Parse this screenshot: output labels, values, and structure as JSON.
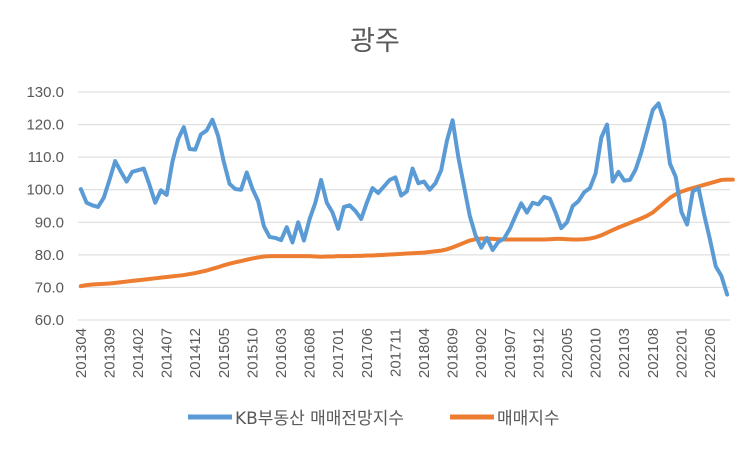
{
  "chart_data": {
    "type": "line",
    "title": "광주",
    "xlabel": "",
    "ylabel": "",
    "ylim": [
      60,
      130
    ],
    "yticks": [
      "130.0",
      "120.0",
      "110.0",
      "100.0",
      "90.0",
      "80.0",
      "70.0",
      "60.0"
    ],
    "x_tick_labels": [
      "201304",
      "201309",
      "201402",
      "201407",
      "201412",
      "201505",
      "201510",
      "201603",
      "201608",
      "201701",
      "201706",
      "201711",
      "201804",
      "201809",
      "201902",
      "201907",
      "201912",
      "202005",
      "202010",
      "202103",
      "202108",
      "202201",
      "202206"
    ],
    "grid": true,
    "legend_position": "bottom",
    "colors": {
      "series_1": "#5b9bd5",
      "series_2": "#ed7d31",
      "grid": "#d9d9d9"
    },
    "series": [
      {
        "name": "KB부동산 매매전망지수",
        "values": [
          100.2,
          96,
          95.2,
          94.7,
          97.5,
          103,
          108.8,
          105.5,
          102.5,
          105.5,
          106,
          106.5,
          101.5,
          96,
          99.8,
          98.4,
          108.5,
          115.5,
          119.2,
          112.5,
          112.3,
          117,
          118.2,
          121.5,
          116.5,
          108.5,
          101.8,
          100.2,
          100,
          105.3,
          100.3,
          96.5,
          88.8,
          85.5,
          85.2,
          84.5,
          88.5,
          83.8,
          90,
          84.4,
          91,
          96,
          103,
          96,
          93,
          88,
          94.7,
          95.2,
          93.5,
          91,
          96,
          100.5,
          99,
          101,
          103,
          103.8,
          98.2,
          99.5,
          106.5,
          102,
          102.5,
          100,
          102,
          106,
          115,
          121.3,
          110,
          101,
          92,
          86,
          82.2,
          85.2,
          81.5,
          84,
          85,
          88,
          92,
          95.8,
          93,
          96,
          95.5,
          97.8,
          97.2,
          93,
          88.2,
          90,
          95,
          96.5,
          99.2,
          100.5,
          105,
          116,
          120,
          102.5,
          105.5,
          102.8,
          103,
          106.2,
          111.5,
          118,
          124.5,
          126.5,
          121,
          108,
          104,
          93.2,
          89.3,
          99.5,
          100.5,
          92.2,
          84.7,
          76.5,
          73.5,
          67.8
        ]
      },
      {
        "name": "매매지수",
        "values": [
          70.4,
          70.7,
          70.9,
          71,
          71.1,
          71.2,
          71.4,
          71.6,
          71.8,
          72,
          72.2,
          72.4,
          72.6,
          72.8,
          73,
          73.2,
          73.4,
          73.6,
          73.8,
          74.1,
          74.4,
          74.8,
          75.2,
          75.7,
          76.2,
          76.8,
          77.3,
          77.7,
          78.1,
          78.5,
          78.9,
          79.2,
          79.5,
          79.6,
          79.6,
          79.6,
          79.6,
          79.6,
          79.6,
          79.6,
          79.6,
          79.5,
          79.4,
          79.5,
          79.5,
          79.6,
          79.6,
          79.6,
          79.7,
          79.7,
          79.8,
          79.8,
          79.9,
          80,
          80.1,
          80.2,
          80.3,
          80.4,
          80.5,
          80.6,
          80.7,
          80.9,
          81.1,
          81.3,
          81.7,
          82.3,
          83,
          83.7,
          84.4,
          84.8,
          85,
          85,
          84.9,
          84.8,
          84.7,
          84.7,
          84.7,
          84.7,
          84.7,
          84.7,
          84.7,
          84.7,
          84.8,
          84.9,
          84.9,
          84.8,
          84.7,
          84.7,
          84.8,
          85,
          85.4,
          86,
          86.8,
          87.6,
          88.4,
          89.1,
          89.8,
          90.5,
          91.2,
          92,
          93,
          94.5,
          96,
          97.5,
          98.6,
          99.4,
          100,
          100.5,
          101,
          101.5,
          102,
          102.5,
          103,
          103.1,
          103.1
        ]
      }
    ]
  }
}
